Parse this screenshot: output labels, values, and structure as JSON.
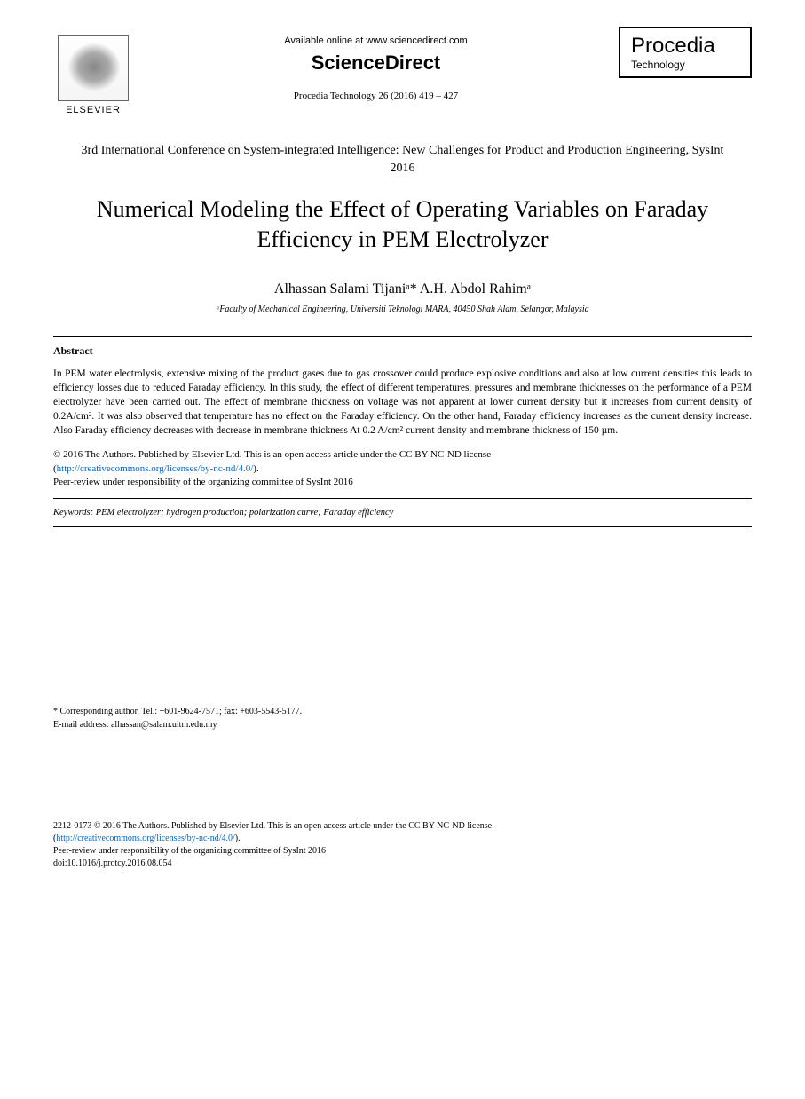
{
  "header": {
    "available_text": "Available online at www.sciencedirect.com",
    "sciencedirect": "ScienceDirect",
    "journal_info": "Procedia Technology 26 (2016) 419 – 427",
    "elsevier_label": "ELSEVIER",
    "procedia_title": "Procedia",
    "procedia_sub": "Technology"
  },
  "conference": "3rd International Conference on System-integrated Intelligence: New Challenges for Product and Production Engineering, SysInt 2016",
  "title": "Numerical Modeling the Effect of Operating Variables on Faraday Efficiency in PEM Electrolyzer",
  "authors": "Alhassan Salami Tijaniᵃ* A.H. Abdol Rahimᵃ",
  "affiliation": "ᵃFaculty of Mechanical Engineering, Universiti Teknologi MARA, 40450 Shah Alam, Selangor, Malaysia",
  "abstract": {
    "heading": "Abstract",
    "text": "In PEM water electrolysis, extensive mixing of the product gases due to gas crossover could produce explosive conditions and also at low current densities this leads to efficiency losses due to reduced Faraday efficiency. In this study, the effect of different temperatures, pressures and membrane thicknesses on the performance of a PEM electrolyzer have been carried out. The effect of membrane thickness on voltage was not apparent at lower current density but it increases from current density of 0.2A/cm². It was also observed that temperature has no effect on the Faraday efficiency. On the other hand, Faraday efficiency increases as the current density increase. Also Faraday efficiency decreases with decrease in membrane thickness At 0.2 A/cm² current density and membrane thickness of 150 µm."
  },
  "copyright": {
    "line1": "© 2016 The Authors. Published by Elsevier Ltd. This is an open access article under the CC BY-NC-ND license",
    "license_url": "http://creativecommons.org/licenses/by-nc-nd/4.0/",
    "line2": "Peer-review under responsibility of the organizing committee of SysInt 2016"
  },
  "keywords": {
    "label": "Keywords:",
    "text": " PEM electrolyzer; hydrogen production; polarization curve; Faraday efficiency"
  },
  "corresponding": {
    "line1": "* Corresponding author. Tel.: +601-9624-7571; fax: +603-5543-5177.",
    "line2": "E-mail address: alhassan@salam.uitm.edu.my"
  },
  "footer": {
    "issn": "2212-0173 © 2016 The Authors. Published by Elsevier Ltd. This is an open access article under the CC BY-NC-ND license",
    "license_url": "http://creativecommons.org/licenses/by-nc-nd/4.0/",
    "peer": "Peer-review under responsibility of the organizing committee of SysInt 2016",
    "doi": "doi:10.1016/j.protcy.2016.08.054"
  }
}
